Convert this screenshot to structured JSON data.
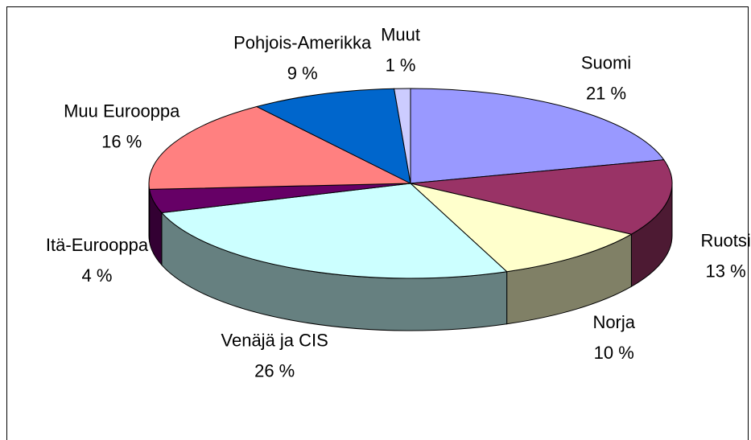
{
  "chart_data": {
    "type": "pie3d",
    "categories": [
      "Suomi",
      "Ruotsi",
      "Norja",
      "Venäjä ja CIS",
      "Itä-Eurooppa",
      "Muu Eurooppa",
      "Pohjois-Amerikka",
      "Muut"
    ],
    "values": [
      21,
      13,
      10,
      26,
      4,
      16,
      9,
      1
    ],
    "value_labels": [
      "21 %",
      "13 %",
      "10 %",
      "26 %",
      "4 %",
      "16 %",
      "9 %",
      "1 %"
    ],
    "colors": [
      "#9999ff",
      "#993366",
      "#ffffcc",
      "#ccffff",
      "#660066",
      "#ff8080",
      "#0066cc",
      "#ccccff"
    ]
  }
}
